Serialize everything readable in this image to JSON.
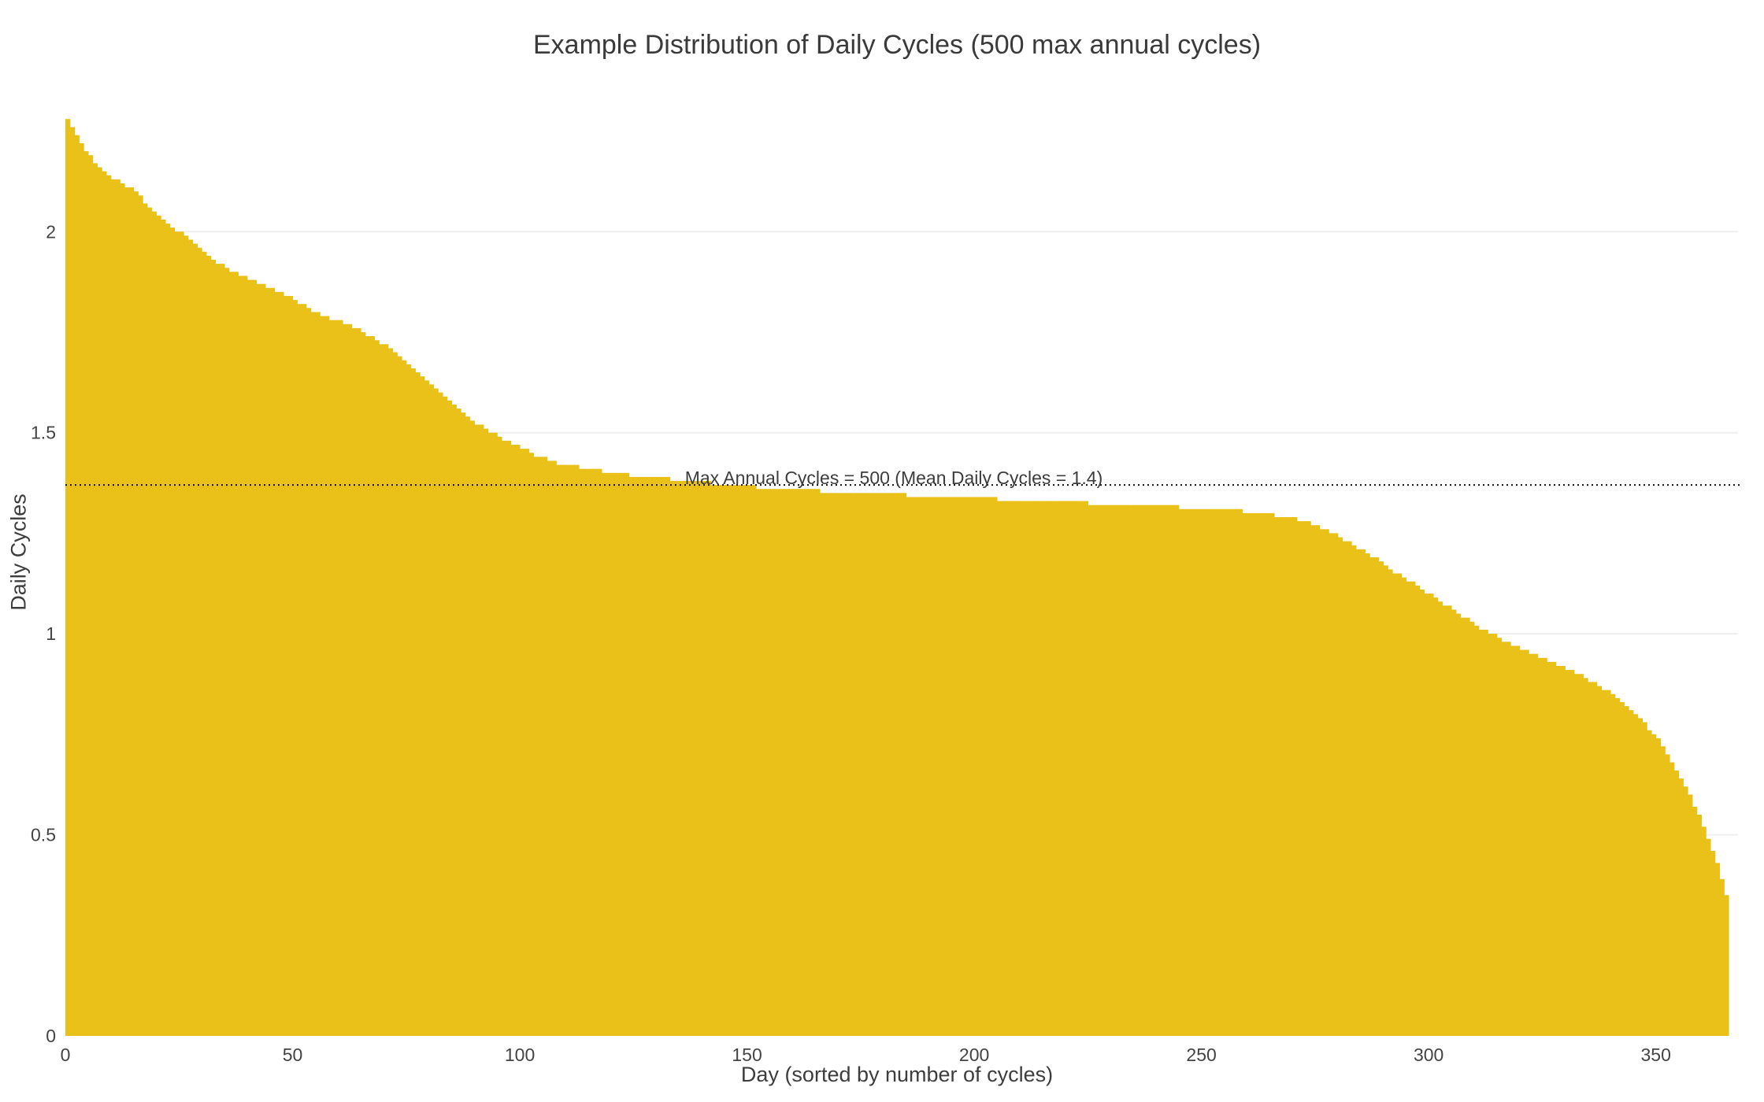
{
  "page": {
    "background": "#ffffff"
  },
  "colors": {
    "bar": "#E9C118",
    "grid": "#efefef",
    "tick_text": "#444444",
    "title_text": "#3a3a3a",
    "annotation_line": "#111111"
  },
  "chart_data": {
    "type": "bar",
    "title": "Example Distribution of Daily Cycles (500 max annual cycles)",
    "xlabel": "Day (sorted by number of cycles)",
    "ylabel": "Daily Cycles",
    "xlim": [
      0,
      366
    ],
    "ylim": [
      0,
      2.3
    ],
    "x_ticks": [
      0,
      50,
      100,
      150,
      200,
      250,
      300,
      350
    ],
    "y_ticks": [
      0,
      0.5,
      1,
      1.5,
      2
    ],
    "grid": true,
    "legend": "none",
    "annotation": {
      "text": "Max Annual Cycles = 500 (Mean Daily Cycles = 1.4)",
      "line_y": 1.37,
      "line_style": "dotted"
    },
    "series": [
      {
        "name": "Daily Cycles",
        "n_points": 366,
        "order": "sorted descending",
        "anchors_day_value": [
          [
            0,
            2.28
          ],
          [
            1,
            2.26
          ],
          [
            2,
            2.24
          ],
          [
            4,
            2.2
          ],
          [
            6,
            2.17
          ],
          [
            9,
            2.14
          ],
          [
            12,
            2.12
          ],
          [
            15,
            2.1
          ],
          [
            17,
            2.07
          ],
          [
            20,
            2.04
          ],
          [
            23,
            2.01
          ],
          [
            26,
            1.99
          ],
          [
            29,
            1.96
          ],
          [
            32,
            1.93
          ],
          [
            35,
            1.91
          ],
          [
            38,
            1.89
          ],
          [
            42,
            1.87
          ],
          [
            46,
            1.85
          ],
          [
            50,
            1.83
          ],
          [
            54,
            1.8
          ],
          [
            58,
            1.78
          ],
          [
            62,
            1.77
          ],
          [
            65,
            1.75
          ],
          [
            68,
            1.73
          ],
          [
            71,
            1.71
          ],
          [
            74,
            1.68
          ],
          [
            77,
            1.65
          ],
          [
            80,
            1.62
          ],
          [
            83,
            1.59
          ],
          [
            86,
            1.56
          ],
          [
            89,
            1.53
          ],
          [
            92,
            1.51
          ],
          [
            95,
            1.49
          ],
          [
            98,
            1.47
          ],
          [
            102,
            1.45
          ],
          [
            106,
            1.43
          ],
          [
            110,
            1.42
          ],
          [
            115,
            1.41
          ],
          [
            120,
            1.4
          ],
          [
            126,
            1.392
          ],
          [
            132,
            1.385
          ],
          [
            140,
            1.376
          ],
          [
            148,
            1.368
          ],
          [
            156,
            1.361
          ],
          [
            164,
            1.356
          ],
          [
            172,
            1.351
          ],
          [
            180,
            1.347
          ],
          [
            190,
            1.342
          ],
          [
            200,
            1.337
          ],
          [
            210,
            1.332
          ],
          [
            220,
            1.327
          ],
          [
            230,
            1.322
          ],
          [
            240,
            1.317
          ],
          [
            250,
            1.312
          ],
          [
            258,
            1.306
          ],
          [
            264,
            1.298
          ],
          [
            270,
            1.288
          ],
          [
            274,
            1.272
          ],
          [
            278,
            1.252
          ],
          [
            282,
            1.228
          ],
          [
            286,
            1.2
          ],
          [
            290,
            1.17
          ],
          [
            294,
            1.14
          ],
          [
            298,
            1.11
          ],
          [
            302,
            1.08
          ],
          [
            306,
            1.05
          ],
          [
            310,
            1.02
          ],
          [
            314,
            0.995
          ],
          [
            318,
            0.97
          ],
          [
            322,
            0.95
          ],
          [
            326,
            0.93
          ],
          [
            330,
            0.91
          ],
          [
            334,
            0.89
          ],
          [
            337,
            0.87
          ],
          [
            340,
            0.85
          ],
          [
            343,
            0.82
          ],
          [
            346,
            0.79
          ],
          [
            349,
            0.75
          ],
          [
            351,
            0.72
          ],
          [
            353,
            0.68
          ],
          [
            355,
            0.64
          ],
          [
            357,
            0.6
          ],
          [
            359,
            0.55
          ],
          [
            360,
            0.52
          ],
          [
            361,
            0.49
          ],
          [
            362,
            0.46
          ],
          [
            363,
            0.43
          ],
          [
            364,
            0.39
          ],
          [
            365,
            0.35
          ]
        ]
      }
    ]
  }
}
